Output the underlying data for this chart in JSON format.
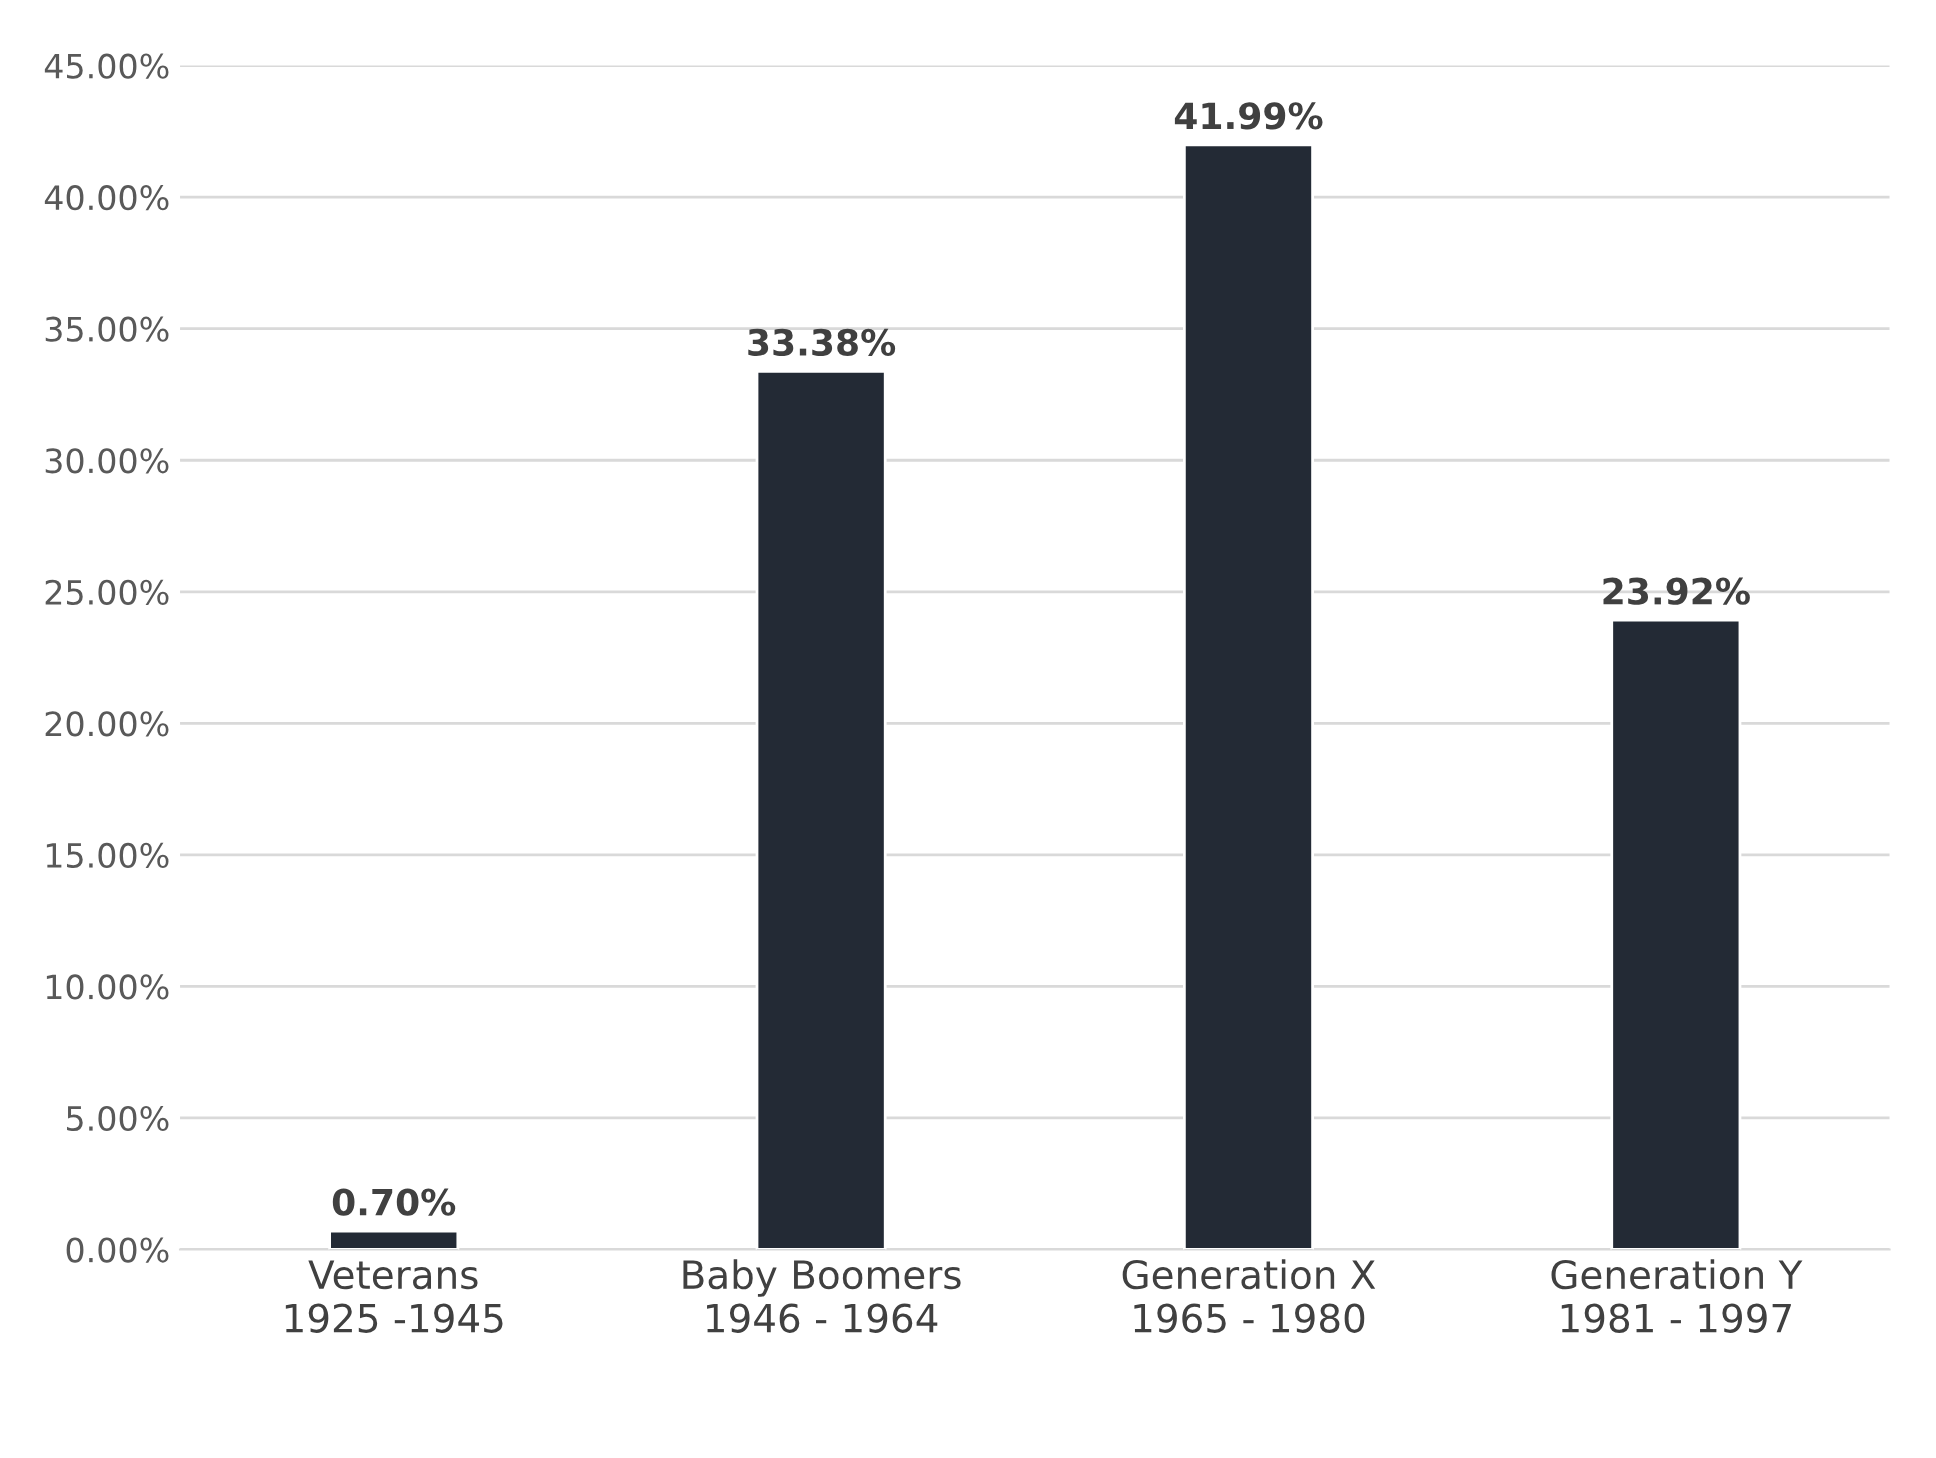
{
  "chart_data": {
    "type": "bar",
    "categories": [
      "Veterans\n1925 -1945",
      "Baby Boomers\n1946 - 1964",
      "Generation X\n1965 - 1980",
      "Generation Y\n1981 - 1997"
    ],
    "values": [
      0.7,
      33.38,
      41.99,
      23.92
    ],
    "value_labels": [
      "0.70%",
      "33.38%",
      "41.99%",
      "23.92%"
    ],
    "color": "#232a35",
    "ylim": [
      0,
      45
    ],
    "yticks": [
      {
        "value": 0,
        "label": "0.00%"
      },
      {
        "value": 5,
        "label": "5.00%"
      },
      {
        "value": 10,
        "label": "10.00%"
      },
      {
        "value": 15,
        "label": "15.00%"
      },
      {
        "value": 20,
        "label": "20.00%"
      },
      {
        "value": 25,
        "label": "25.00%"
      },
      {
        "value": 30,
        "label": "30.00%"
      },
      {
        "value": 35,
        "label": "35.00%"
      },
      {
        "value": 40,
        "label": "40.00%"
      },
      {
        "value": 45,
        "label": "45.00%"
      }
    ],
    "grid": "y"
  }
}
